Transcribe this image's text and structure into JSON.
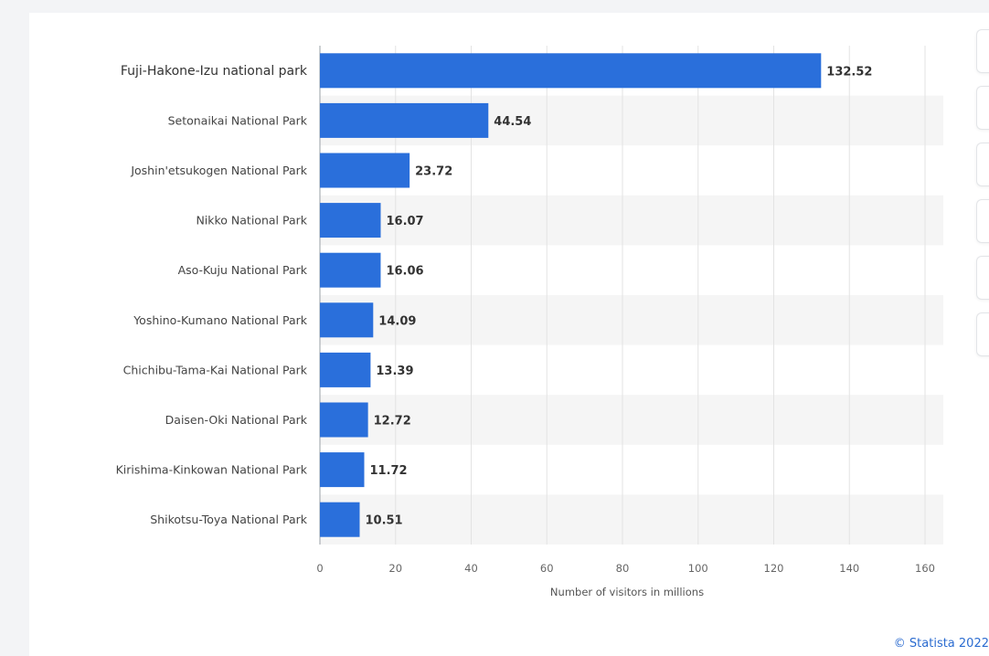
{
  "chart_data": {
    "type": "bar",
    "orientation": "horizontal",
    "categories": [
      "Fuji-Hakone-Izu national park",
      "Setonaikai National Park",
      "Joshin'etsukogen National Park",
      "Nikko National Park",
      "Aso-Kuju National Park",
      "Yoshino-Kumano National Park",
      "Chichibu-Tama-Kai National Park",
      "Daisen-Oki National Park",
      "Kirishima-Kinkowan National Park",
      "Shikotsu-Toya National Park"
    ],
    "values": [
      132.52,
      44.54,
      23.72,
      16.07,
      16.06,
      14.09,
      13.39,
      12.72,
      11.72,
      10.51
    ],
    "value_labels": [
      "132.52",
      "44.54",
      "23.72",
      "16.07",
      "16.06",
      "14.09",
      "13.39",
      "12.72",
      "11.72",
      "10.51"
    ],
    "xlabel": "Number of visitors in millions",
    "xlim": [
      0,
      160
    ],
    "xticks": [
      0,
      20,
      40,
      60,
      80,
      100,
      120,
      140,
      160
    ],
    "xtick_labels": [
      "0",
      "20",
      "40",
      "60",
      "80",
      "100",
      "120",
      "140",
      "160"
    ],
    "grid": true,
    "bar_color": "#2a6fdb",
    "stripe_color": "#f5f5f5"
  },
  "credit": "© Statista 2022",
  "toolbar": {
    "buttons": [
      "toolbar-button-1",
      "toolbar-button-2",
      "toolbar-button-3",
      "toolbar-button-4",
      "toolbar-button-5",
      "toolbar-button-6"
    ]
  }
}
